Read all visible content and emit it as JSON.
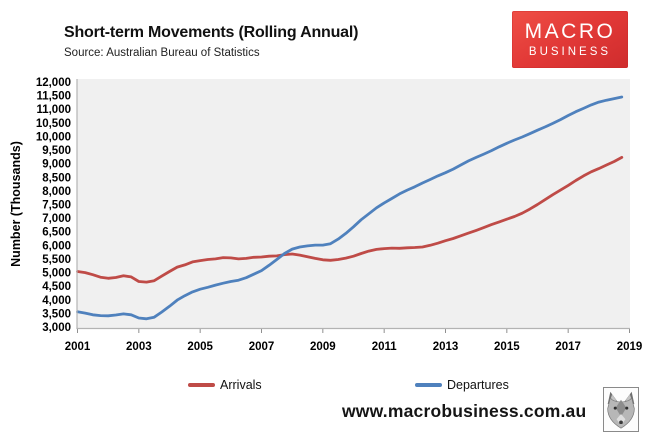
{
  "header": {
    "title": "Short-term Movements (Rolling Annual)",
    "source": "Source: Australian Bureau of Statistics"
  },
  "logo": {
    "line1": "MACRO",
    "line2": "BUSINESS",
    "bg_color": "#e23937"
  },
  "footer": {
    "url": "www.macrobusiness.com.au"
  },
  "chart_data": {
    "type": "line",
    "title": "Short-term Movements (Rolling Annual)",
    "source": "Source: Australian Bureau of Statistics",
    "ylabel": "Number (Thousands)",
    "xlabel": "",
    "ylim": [
      3000,
      12000
    ],
    "ytick_step": 500,
    "xticks": [
      2001,
      2003,
      2005,
      2007,
      2009,
      2011,
      2013,
      2015,
      2017,
      2019
    ],
    "x_start": 2001.0,
    "x_step": 0.25,
    "x_end": 2018.75,
    "grid": false,
    "plot_bg": "#f0f0f0",
    "legend_position": "bottom",
    "series": [
      {
        "name": "Arrivals",
        "color": "#bf4b47",
        "values": [
          5040,
          5000,
          4920,
          4830,
          4790,
          4820,
          4880,
          4840,
          4670,
          4650,
          4700,
          4870,
          5040,
          5200,
          5280,
          5390,
          5440,
          5480,
          5500,
          5550,
          5540,
          5500,
          5520,
          5560,
          5570,
          5600,
          5610,
          5660,
          5680,
          5640,
          5580,
          5520,
          5470,
          5450,
          5480,
          5530,
          5600,
          5700,
          5790,
          5850,
          5880,
          5900,
          5890,
          5910,
          5920,
          5940,
          6000,
          6080,
          6170,
          6250,
          6350,
          6450,
          6550,
          6650,
          6760,
          6860,
          6960,
          7060,
          7180,
          7330,
          7500,
          7680,
          7860,
          8030,
          8200,
          8380,
          8550,
          8700,
          8820,
          8950,
          9080,
          9230
        ]
      },
      {
        "name": "Departures",
        "color": "#4f81bd",
        "values": [
          3560,
          3510,
          3450,
          3420,
          3410,
          3440,
          3480,
          3450,
          3330,
          3300,
          3360,
          3550,
          3760,
          3990,
          4150,
          4290,
          4390,
          4460,
          4540,
          4610,
          4670,
          4720,
          4810,
          4940,
          5070,
          5270,
          5480,
          5700,
          5860,
          5940,
          5980,
          6010,
          6010,
          6060,
          6230,
          6440,
          6680,
          6940,
          7160,
          7380,
          7560,
          7720,
          7890,
          8030,
          8150,
          8290,
          8420,
          8550,
          8670,
          8800,
          8950,
          9100,
          9230,
          9350,
          9480,
          9620,
          9750,
          9870,
          9980,
          10100,
          10230,
          10350,
          10480,
          10620,
          10770,
          10910,
          11030,
          11160,
          11260,
          11330,
          11390,
          11450
        ]
      }
    ]
  }
}
